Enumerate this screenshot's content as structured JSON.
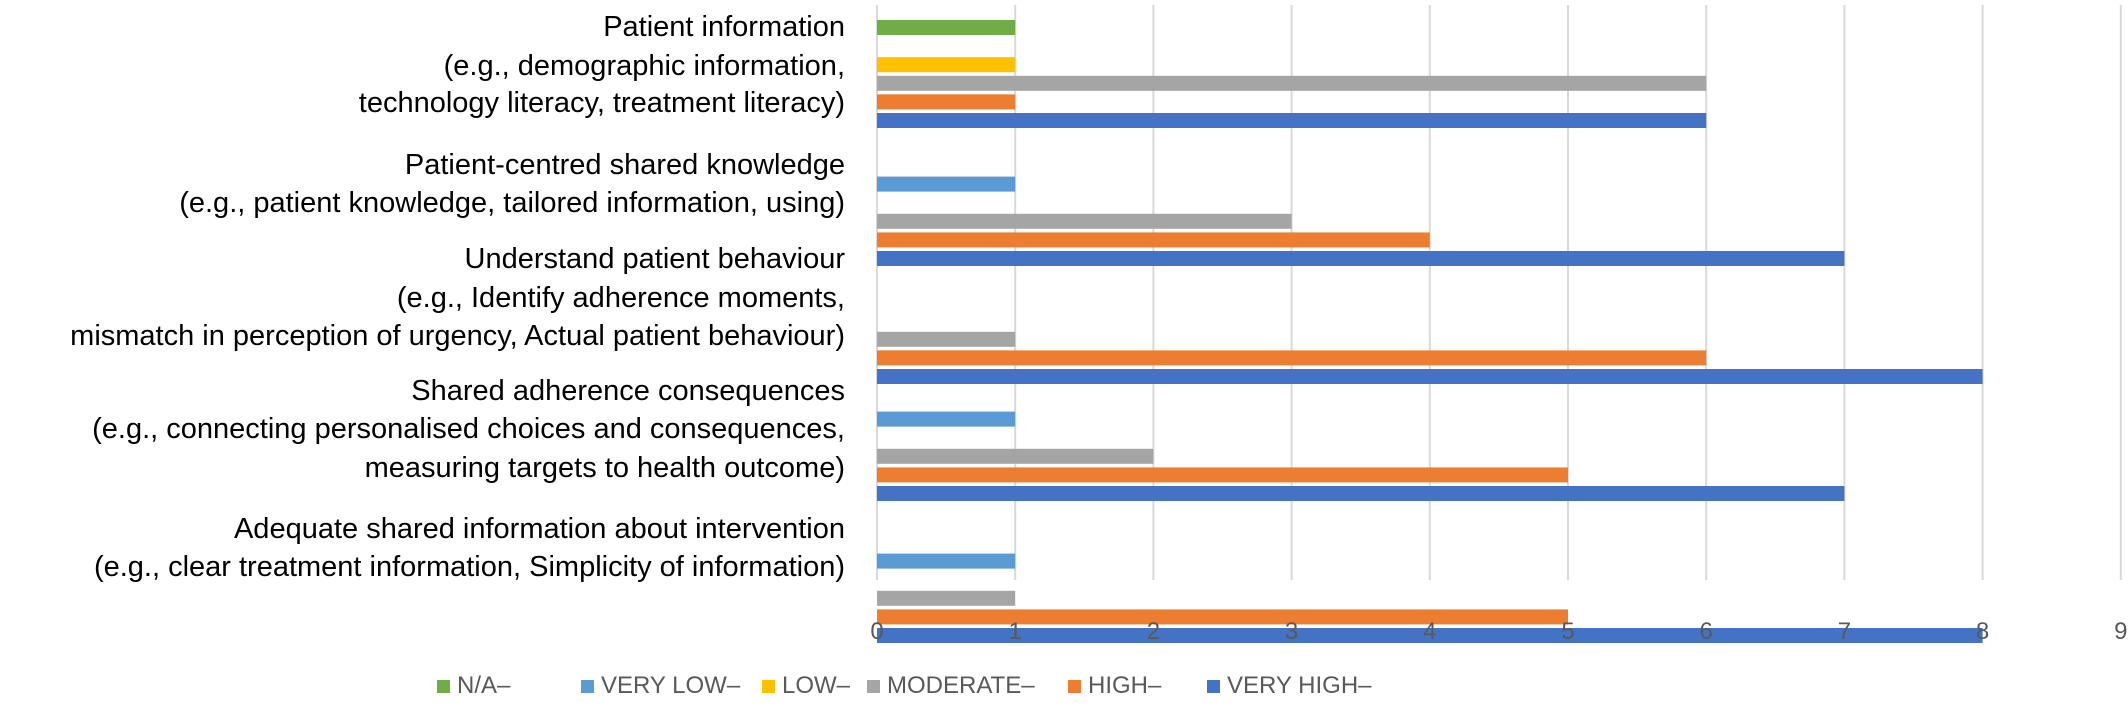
{
  "chart_data": {
    "type": "bar",
    "orientation": "horizontal",
    "categories": [
      [
        "Patient information",
        "(e.g., demographic information,",
        "technology literacy, treatment literacy)"
      ],
      [
        "Patient-centred shared knowledge",
        "(e.g., patient knowledge, tailored information, using)"
      ],
      [
        "Understand patient behaviour",
        "(e.g., Identify adherence moments,",
        "mismatch in perception of urgency, Actual patient behaviour)"
      ],
      [
        "Shared adherence consequences",
        "(e.g., connecting personalised choices and consequences,",
        "measuring targets to health outcome)"
      ],
      [
        "Adequate shared information about intervention",
        "(e.g., clear treatment information, Simplicity of information)"
      ]
    ],
    "series": [
      {
        "name": "N/A–",
        "color": "#70ad47",
        "values": [
          1,
          0,
          0,
          0,
          0
        ]
      },
      {
        "name": "VERY LOW–",
        "color": "#5b9bd5",
        "values": [
          0,
          1,
          0,
          1,
          1
        ]
      },
      {
        "name": "LOW–",
        "color": "#ffc000",
        "values": [
          1,
          0,
          0,
          0,
          0
        ]
      },
      {
        "name": "MODERATE–",
        "color": "#a5a5a5",
        "values": [
          6,
          3,
          1,
          2,
          1
        ]
      },
      {
        "name": "HIGH–",
        "color": "#ed7d31",
        "values": [
          1,
          4,
          6,
          5,
          5
        ]
      },
      {
        "name": "VERY HIGH–",
        "color": "#4472c4",
        "values": [
          6,
          7,
          8,
          7,
          8
        ]
      }
    ],
    "xlim": [
      0,
      9
    ],
    "xticks": [
      "0",
      "1",
      "2",
      "3",
      "4",
      "5",
      "6",
      "7",
      "8",
      "9"
    ],
    "grid": "vertical",
    "legend": "bottom"
  }
}
